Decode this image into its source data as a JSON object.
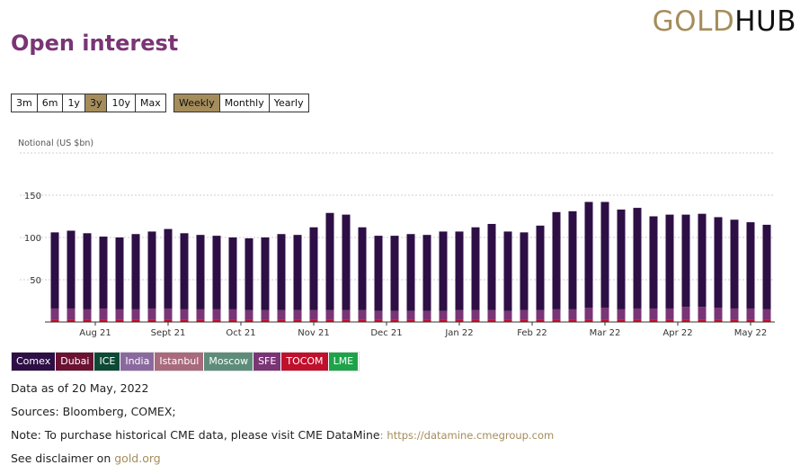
{
  "logo": {
    "part1": "GOLD",
    "part2": "HUB"
  },
  "title": "Open interest",
  "range_buttons": [
    "3m",
    "6m",
    "1y",
    "3y",
    "10y",
    "Max"
  ],
  "range_active": "3y",
  "freq_buttons": [
    "Weekly",
    "Monthly",
    "Yearly"
  ],
  "freq_active": "Weekly",
  "legend": [
    {
      "label": "Comex",
      "color": "#2d0f45"
    },
    {
      "label": "Dubai",
      "color": "#6b1232"
    },
    {
      "label": "ICE",
      "color": "#0d4a36"
    },
    {
      "label": "India",
      "color": "#8a6a9e"
    },
    {
      "label": "Istanbul",
      "color": "#a86a7c"
    },
    {
      "label": "Moscow",
      "color": "#5e8c7a"
    },
    {
      "label": "SFE",
      "color": "#7a3575"
    },
    {
      "label": "TOCOM",
      "color": "#c0102c"
    },
    {
      "label": "LME",
      "color": "#1fa34a"
    }
  ],
  "info": {
    "data_as_of": "Data as of 20 May, 2022",
    "sources": "Sources: Bloomberg, COMEX;",
    "note_text": "Note: To purchase historical CME data, please visit CME DataMine",
    "note_colon": ":",
    "note_link": "https://datamine.cmegroup.com",
    "disclaimer_text": "See disclaimer on",
    "disclaimer_link": "gold.org"
  },
  "chart_data": {
    "type": "bar",
    "stacked": true,
    "ylabel": "Notional (US $bn)",
    "ylim": [
      0,
      200
    ],
    "yticks": [
      50,
      100,
      150
    ],
    "grid": true,
    "x_tick_labels": [
      "Aug 21",
      "Sept 21",
      "Oct 21",
      "Nov 21",
      "Dec 21",
      "Jan 22",
      "Feb 22",
      "Mar 22",
      "Apr 22",
      "May 22"
    ],
    "x_tick_positions": [
      2.5,
      7,
      11.5,
      16,
      20.5,
      25,
      29.5,
      34,
      38.5,
      43
    ],
    "total_values": [
      106,
      108,
      105,
      101,
      100,
      104,
      107,
      110,
      105,
      103,
      102,
      100,
      99,
      100,
      104,
      103,
      112,
      129,
      127,
      112,
      102,
      102,
      104,
      103,
      107,
      107,
      112,
      116,
      107,
      106,
      114,
      130,
      131,
      142,
      142,
      133,
      135,
      125,
      127,
      127,
      128,
      124,
      121,
      118,
      115
    ],
    "series": [
      {
        "name": "Comex",
        "values": [
          90,
          92,
          90,
          85,
          85,
          89,
          91,
          94,
          90,
          88,
          87,
          85,
          85,
          86,
          90,
          89,
          98,
          115,
          113,
          98,
          89,
          89,
          91,
          90,
          94,
          93,
          98,
          102,
          94,
          92,
          100,
          115,
          116,
          125,
          125,
          118,
          119,
          109,
          111,
          109,
          110,
          107,
          105,
          102,
          100
        ]
      },
      {
        "name": "SFE",
        "values": [
          13,
          13,
          12,
          13,
          12,
          12,
          13,
          13,
          12,
          12,
          12,
          12,
          11,
          11,
          11,
          11,
          11,
          11,
          11,
          11,
          10,
          10,
          10,
          10,
          10,
          11,
          11,
          11,
          10,
          11,
          11,
          12,
          12,
          14,
          14,
          12,
          13,
          13,
          13,
          15,
          15,
          14,
          13,
          13,
          12
        ]
      },
      {
        "name": "TOCOM",
        "values": [
          3,
          3,
          3,
          3,
          3,
          3,
          3,
          3,
          3,
          3,
          3,
          3,
          3,
          3,
          3,
          3,
          3,
          3,
          3,
          3,
          3,
          3,
          3,
          3,
          3,
          3,
          3,
          3,
          3,
          3,
          3,
          3,
          3,
          3,
          3,
          3,
          3,
          3,
          3,
          3,
          3,
          3,
          3,
          3,
          3
        ]
      }
    ]
  }
}
